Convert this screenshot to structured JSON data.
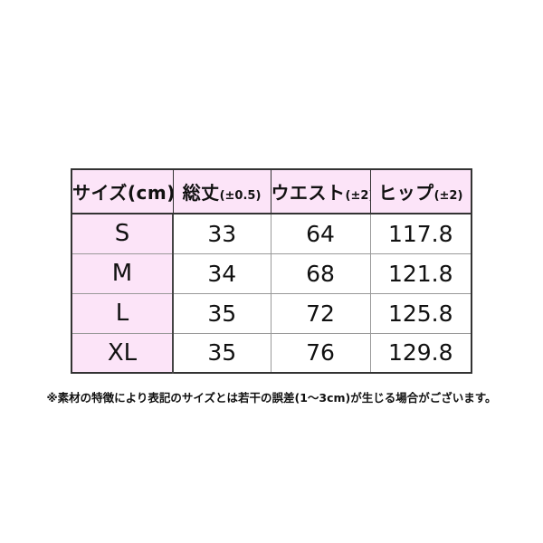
{
  "table": {
    "columns": [
      {
        "label": "サイズ(cm)",
        "sub": ""
      },
      {
        "label": "総丈",
        "sub": "(±0.5)"
      },
      {
        "label": "ウエスト",
        "sub": "(±2)"
      },
      {
        "label": "ヒップ",
        "sub": "(±2)"
      }
    ],
    "rows": [
      {
        "size": "S",
        "values": [
          "33",
          "64",
          "117.8"
        ]
      },
      {
        "size": "M",
        "values": [
          "34",
          "68",
          "121.8"
        ]
      },
      {
        "size": "L",
        "values": [
          "35",
          "72",
          "125.8"
        ]
      },
      {
        "size": "XL",
        "values": [
          "35",
          "76",
          "129.8"
        ]
      }
    ]
  },
  "footnote": "※素材の特徴により表記のサイズとは若干の誤差(1～3cm)が生じる場合がございます。",
  "colors": {
    "header_bg": "#fce4f8",
    "border_outer": "#333333",
    "border_outer2": "#444444",
    "border_inner": "#999999",
    "text": "#111111"
  }
}
